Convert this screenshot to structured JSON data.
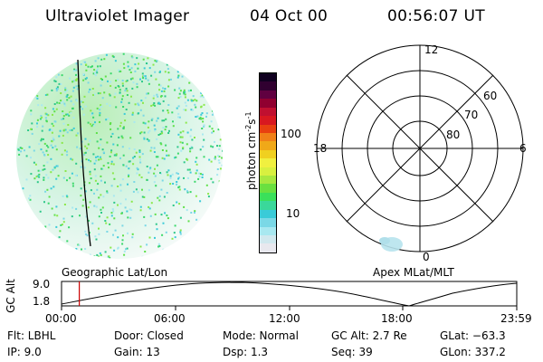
{
  "header": {
    "instrument": "Ultraviolet Imager",
    "date": "04 Oct 00",
    "time": "00:56:07 UT"
  },
  "image_panel": {
    "label": "Geographic Lat/Lon"
  },
  "polar_panel": {
    "label": "Apex MLat/MLT",
    "mlt_labels": [
      "12",
      "6",
      "0",
      "18"
    ],
    "mlat_labels": [
      "60",
      "70",
      "80"
    ]
  },
  "colorbar": {
    "unit_label": "photon cm",
    "unit_sup1": "-2",
    "unit_s": "s",
    "unit_sup2": "-1",
    "ticks": [
      "100",
      "10"
    ],
    "colors": [
      "#e8e8ee",
      "#d0e8ee",
      "#a8e8f0",
      "#7ad8e6",
      "#3acbd8",
      "#3ad89a",
      "#3ae05a",
      "#6ae040",
      "#a8e840",
      "#d8f040",
      "#f0f040",
      "#f0d020",
      "#f0a818",
      "#f08018",
      "#e84010",
      "#d81820",
      "#c01030",
      "#900030",
      "#600040",
      "#300030",
      "#100020"
    ]
  },
  "altitude_plot": {
    "ylabel": "GC Alt",
    "yticks": [
      "9.0",
      "1.8"
    ],
    "xticks": [
      "00:00",
      "06:00",
      "12:00",
      "18:00",
      "23:59"
    ],
    "current_time_fraction": 0.039
  },
  "footer": {
    "flt": "Flt: LBHL",
    "ip": "IP:  9.0",
    "door": "Door: Closed",
    "gain": "Gain: 13",
    "mode": "Mode: Normal",
    "dsp": "Dsp:    1.3",
    "gc_alt": "GC Alt: 2.7 Re",
    "seq": "Seq: 39",
    "glat": "GLat: −63.3",
    "glon": "GLon: 337.2"
  }
}
